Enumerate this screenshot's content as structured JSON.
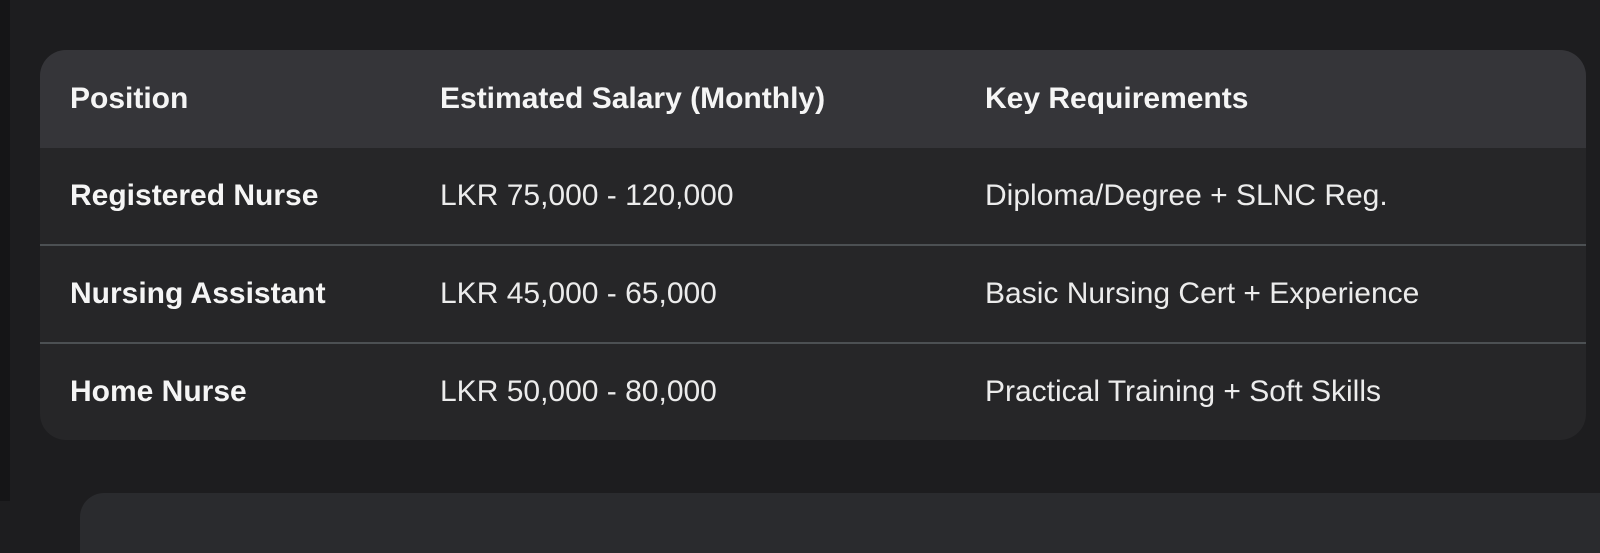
{
  "table": {
    "columns": [
      "Position",
      "Estimated Salary (Monthly)",
      "Key Requirements"
    ],
    "rows": [
      {
        "position": "Registered Nurse",
        "salary": "LKR 75,000 - 120,000",
        "requirements": "Diploma/Degree + SLNC Reg."
      },
      {
        "position": "Nursing Assistant",
        "salary": "LKR 45,000 - 65,000",
        "requirements": "Basic Nursing Cert + Experience"
      },
      {
        "position": "Home Nurse",
        "salary": "LKR 50,000 - 80,000",
        "requirements": "Practical Training + Soft Skills"
      }
    ]
  },
  "colors": {
    "page_background": "#1d1d1f",
    "card_header_background": "#353539",
    "card_row_background": "#262628",
    "row_divider": "#4c5053",
    "text": "#f5f5f5",
    "window_left_edge": "#151517",
    "next_card_background": "#2a2b2e"
  }
}
